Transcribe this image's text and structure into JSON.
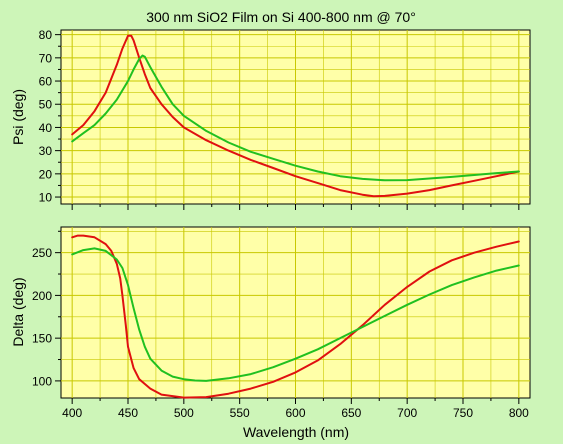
{
  "chart_data": {
    "type": "line",
    "title": "300 nm SiO2 Film on Si 400-800 nm @ 70°",
    "xlabel": "Wavelength (nm)",
    "xlim": [
      390,
      810
    ],
    "x_ticks": [
      "400",
      "450",
      "500",
      "550",
      "600",
      "650",
      "700",
      "750",
      "800"
    ],
    "grid": true,
    "colors": {
      "plot_background": "#ffffa8",
      "page_background": "#cdf5b8",
      "grid": "#c8c800",
      "series_red": "#e01010",
      "series_green": "#20c020"
    },
    "panels": [
      {
        "ylabel": "Psi (deg)",
        "ylim": [
          7,
          82
        ],
        "y_ticks": [
          "10",
          "20",
          "30",
          "40",
          "50",
          "60",
          "70",
          "80"
        ],
        "series": [
          {
            "color": "#e01010",
            "x": [
              400,
              410,
              420,
              430,
              440,
              445,
              450,
              453,
              455,
              460,
              465,
              470,
              480,
              490,
              500,
              520,
              540,
              560,
              580,
              600,
              620,
              640,
              660,
              670,
              680,
              700,
              720,
              740,
              760,
              780,
              800
            ],
            "y": [
              37,
              41,
              47,
              55,
              67,
              74,
              79.5,
              79.5,
              77.5,
              70,
              63,
              57,
              50,
              44.5,
              40,
              34.5,
              30,
              26,
              22.5,
              19,
              16,
              13,
              11,
              10.3,
              10.5,
              11.5,
              13,
              15,
              17,
              19,
              21
            ]
          },
          {
            "color": "#20c020",
            "x": [
              400,
              410,
              420,
              430,
              440,
              450,
              455,
              460,
              463,
              465,
              470,
              480,
              490,
              500,
              520,
              540,
              560,
              580,
              600,
              620,
              640,
              660,
              680,
              700,
              720,
              740,
              760,
              780,
              800
            ],
            "y": [
              34,
              37.5,
              41,
              46,
              52,
              60,
              65,
              69.5,
              71,
              70.5,
              66,
              57.5,
              50,
              45,
              38.5,
              33.5,
              29.5,
              26.5,
              23.5,
              21,
              19,
              17.8,
              17.2,
              17.3,
              18,
              18.7,
              19.5,
              20.3,
              21
            ]
          }
        ]
      },
      {
        "ylabel": "Delta (deg)",
        "ylim": [
          80,
          280
        ],
        "y_ticks": [
          "100",
          "150",
          "200",
          "250"
        ],
        "series": [
          {
            "color": "#e01010",
            "x": [
              400,
              405,
              410,
              420,
              430,
              435,
              440,
              443,
              445,
              448,
              450,
              455,
              460,
              470,
              480,
              500,
              520,
              540,
              560,
              580,
              600,
              620,
              640,
              660,
              680,
              700,
              720,
              740,
              760,
              780,
              800
            ],
            "y": [
              268,
              270,
              270,
              268,
              260,
              252,
              237,
              220,
              200,
              165,
              140,
              115,
              102,
              91,
              84,
              80.5,
              81,
              85,
              91,
              99,
              110,
              124,
              143,
              165,
              189,
              210,
              228,
              241,
              250,
              257,
              263
            ]
          },
          {
            "color": "#20c020",
            "x": [
              400,
              410,
              420,
              430,
              440,
              445,
              450,
              455,
              460,
              465,
              470,
              480,
              490,
              500,
              510,
              520,
              540,
              560,
              580,
              600,
              620,
              640,
              660,
              680,
              700,
              720,
              740,
              760,
              780,
              800
            ],
            "y": [
              248,
              253,
              255,
              252,
              242,
              232,
              212,
              185,
              160,
              140,
              126,
              112,
              105,
              102,
              100.5,
              100,
              103,
              108,
              116,
              126,
              137,
              150,
              163,
              176,
              189,
              201,
              212,
              221,
              229,
              235
            ]
          }
        ]
      }
    ]
  }
}
